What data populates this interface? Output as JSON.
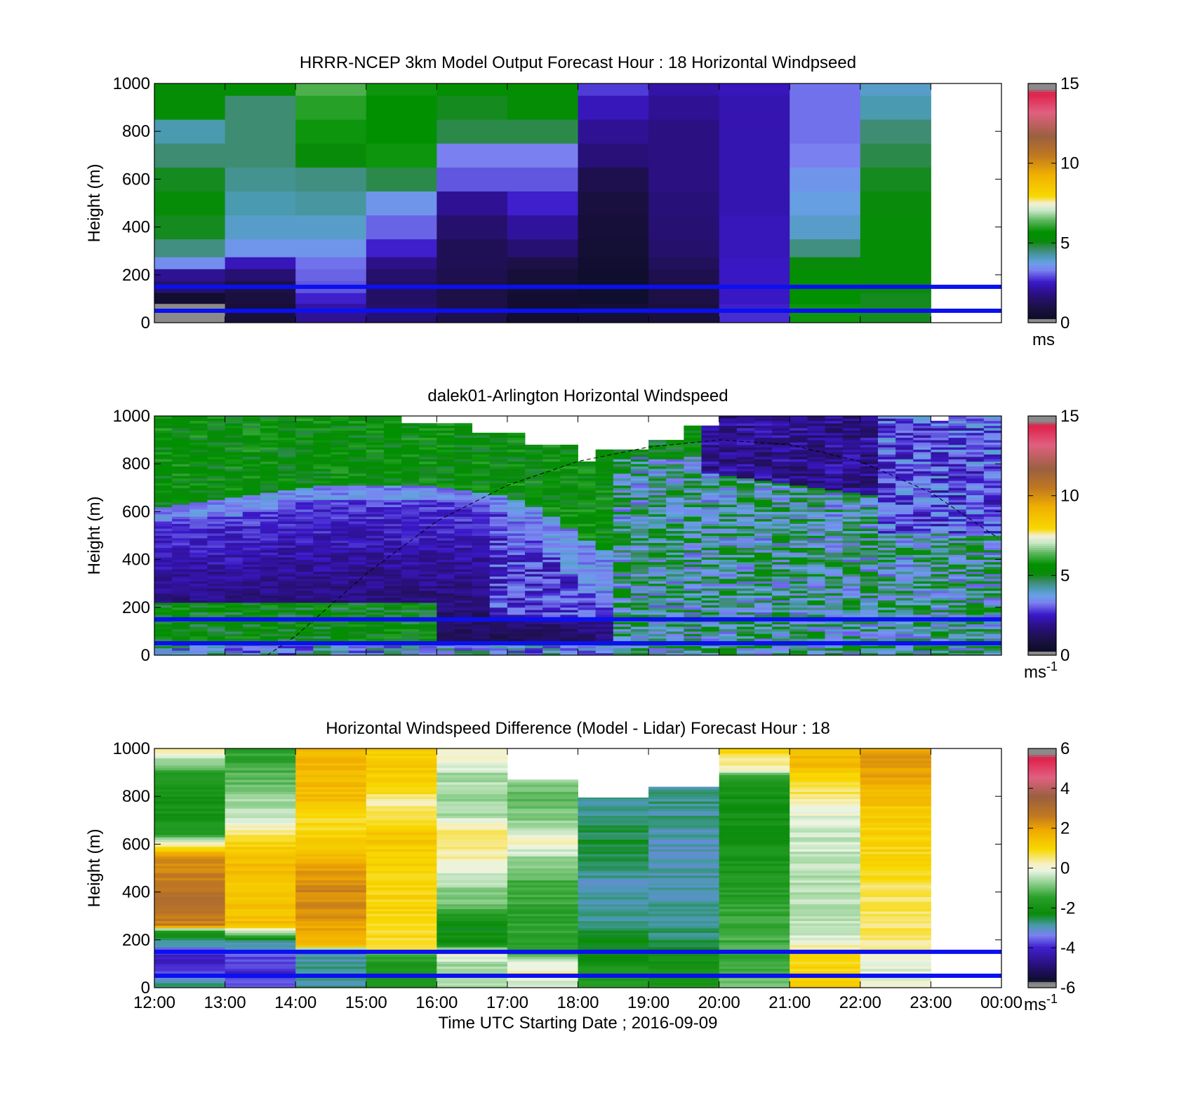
{
  "chart_data": [
    {
      "type": "heatmap",
      "title": "HRRR-NCEP 3km Model Output   Forecast Hour : 18 Horizontal Windpseed",
      "ylabel": "Height (m)",
      "ylim": [
        0,
        1000
      ],
      "y_ticks": [
        "0",
        "200",
        "400",
        "600",
        "800",
        "1000"
      ],
      "x_ticks": [
        "12:00",
        "13:00",
        "14:00",
        "15:00",
        "16:00",
        "17:00",
        "18:00",
        "19:00",
        "20:00",
        "21:00",
        "22:00",
        "23:00",
        "00:00"
      ],
      "colorbar": {
        "min": 0,
        "max": 15,
        "ticks": [
          "0",
          "5",
          "10",
          "15"
        ],
        "unit": "ms",
        "unit_sup": ""
      },
      "reference_lines_m": [
        50,
        150
      ],
      "heights_m": [
        30,
        60,
        100,
        150,
        200,
        250,
        300,
        400,
        500,
        600,
        700,
        800,
        900,
        1000
      ],
      "columns": [
        {
          "time": "12:00",
          "speed_ms": [
            0.2,
            0.1,
            0.5,
            1.5,
            2.0,
            3.5,
            4.5,
            5.0,
            5.3,
            5.0,
            4.6,
            4.2,
            5.4,
            5.4
          ]
        },
        {
          "time": "13:00",
          "speed_ms": [
            0.8,
            0.7,
            0.9,
            1.0,
            1.6,
            2.4,
            3.6,
            4.0,
            4.2,
            4.4,
            4.6,
            4.6,
            4.6,
            5.5
          ]
        },
        {
          "time": "14:00",
          "speed_ms": [
            2.0,
            2.2,
            2.6,
            3.0,
            3.1,
            3.2,
            3.6,
            4.0,
            4.3,
            4.5,
            5.2,
            5.8,
            6.0,
            6.3
          ]
        },
        {
          "time": "15:00",
          "speed_ms": [
            1.6,
            1.5,
            1.4,
            1.4,
            1.5,
            1.9,
            2.6,
            3.1,
            3.6,
            4.8,
            5.8,
            5.7,
            5.7,
            5.8
          ]
        },
        {
          "time": "16:00",
          "speed_ms": [
            1.1,
            1.0,
            1.0,
            1.0,
            1.1,
            1.2,
            1.2,
            1.5,
            2.0,
            3.0,
            3.3,
            4.8,
            5.0,
            5.5
          ]
        },
        {
          "time": "17:00",
          "speed_ms": [
            0.5,
            0.5,
            0.5,
            0.6,
            0.7,
            1.0,
            1.6,
            2.1,
            2.6,
            3.0,
            3.3,
            4.8,
            5.4,
            5.5
          ]
        },
        {
          "time": "18:00",
          "speed_ms": [
            0.6,
            0.6,
            0.4,
            0.4,
            0.4,
            0.5,
            0.6,
            0.7,
            0.9,
            1.1,
            1.7,
            2.0,
            2.4,
            2.8
          ]
        },
        {
          "time": "19:00",
          "speed_ms": [
            0.9,
            0.9,
            1.0,
            1.0,
            1.1,
            1.3,
            1.5,
            1.6,
            1.7,
            1.8,
            1.8,
            1.8,
            2.0,
            2.2
          ]
        },
        {
          "time": "20:00",
          "speed_ms": [
            2.7,
            2.6,
            2.5,
            2.5,
            2.5,
            2.5,
            2.4,
            2.4,
            2.3,
            2.3,
            2.3,
            2.3,
            2.3,
            2.4
          ]
        },
        {
          "time": "21:00",
          "speed_ms": [
            5.8,
            5.8,
            5.7,
            5.6,
            5.5,
            5.1,
            4.5,
            4.0,
            3.8,
            3.6,
            3.3,
            3.2,
            3.2,
            3.2
          ]
        },
        {
          "time": "22:00",
          "speed_ms": [
            5.0,
            5.0,
            5.0,
            5.2,
            5.3,
            5.4,
            5.4,
            5.3,
            5.1,
            5.0,
            4.8,
            4.6,
            4.2,
            4.0
          ]
        }
      ]
    },
    {
      "type": "heatmap",
      "title": "dalek01-Arlington  Horizontal Windspeed",
      "ylabel": "Height (m)",
      "ylim": [
        0,
        1000
      ],
      "y_ticks": [
        "0",
        "200",
        "400",
        "600",
        "800",
        "1000"
      ],
      "x_ticks": [
        "12:00",
        "13:00",
        "14:00",
        "15:00",
        "16:00",
        "17:00",
        "18:00",
        "19:00",
        "20:00",
        "21:00",
        "22:00",
        "23:00",
        "00:00"
      ],
      "colorbar": {
        "min": 0,
        "max": 15,
        "ticks": [
          "0",
          "5",
          "10",
          "15"
        ],
        "unit": "ms",
        "unit_sup": "-1"
      },
      "reference_lines_m": [
        50,
        150
      ],
      "dashed_curve_points": [
        [
          13.6,
          0
        ],
        [
          14,
          80
        ],
        [
          15,
          340
        ],
        [
          16,
          560
        ],
        [
          17,
          710
        ],
        [
          18,
          810
        ],
        [
          19,
          870
        ],
        [
          20,
          900
        ],
        [
          21,
          880
        ],
        [
          22,
          810
        ],
        [
          23,
          680
        ],
        [
          23.95,
          490
        ]
      ],
      "lidar_features": {
        "low_wind_core_top_m": [
          [
            12,
            560
          ],
          [
            13,
            580
          ],
          [
            14,
            640
          ],
          [
            15,
            650
          ],
          [
            16,
            640
          ],
          [
            16.5,
            630
          ],
          [
            17,
            560
          ],
          [
            17.5,
            420
          ],
          [
            18,
            260
          ],
          [
            18.5,
            170
          ]
        ],
        "upper_green_layer_bottom_m": [
          [
            12,
            620
          ],
          [
            13,
            660
          ],
          [
            14,
            700
          ],
          [
            15,
            710
          ],
          [
            16,
            700
          ],
          [
            17,
            650
          ],
          [
            17.5,
            580
          ],
          [
            18,
            480
          ],
          [
            18.5,
            400
          ]
        ],
        "upper_data_gaps": [
          {
            "t0": 15.5,
            "t1": 16.6,
            "z0": 970,
            "z1": 1000
          },
          {
            "t0": 16.6,
            "t1": 17.3,
            "z0": 930,
            "z1": 1000
          },
          {
            "t0": 17.3,
            "t1": 18.0,
            "z0": 880,
            "z1": 1000
          },
          {
            "t0": 18.0,
            "t1": 18.35,
            "z0": 815,
            "z1": 1000
          },
          {
            "t0": 18.35,
            "t1": 19.0,
            "z0": 860,
            "z1": 1000
          },
          {
            "t0": 19.0,
            "t1": 19.6,
            "z0": 900,
            "z1": 1000
          },
          {
            "t0": 19.6,
            "t1": 20.0,
            "z0": 960,
            "z1": 1000
          },
          {
            "t0": 22.9,
            "t1": 23.2,
            "z0": 980,
            "z1": 1000
          },
          {
            "t0": 23.2,
            "t1": 23.35,
            "z0": 880,
            "z1": 940
          }
        ],
        "data_end_time": 23.95
      }
    },
    {
      "type": "heatmap",
      "title": "Horizontal Windspeed Difference (Model - Lidar) Forecast Hour : 18",
      "ylabel": "Height (m)",
      "xlabel": "Time UTC  Starting Date ; 2016-09-09",
      "ylim": [
        0,
        1000
      ],
      "y_ticks": [
        "0",
        "200",
        "400",
        "600",
        "800",
        "1000"
      ],
      "x_ticks": [
        "12:00",
        "13:00",
        "14:00",
        "15:00",
        "16:00",
        "17:00",
        "18:00",
        "19:00",
        "20:00",
        "21:00",
        "22:00",
        "23:00",
        "00:00"
      ],
      "colorbar": {
        "min": -6,
        "max": 6,
        "ticks": [
          "-6",
          "-4",
          "-2",
          "0",
          "2",
          "4",
          "6"
        ],
        "unit": "ms",
        "unit_sup": "-1"
      },
      "reference_lines_m": [
        50,
        150
      ],
      "columns": [
        {
          "time": "12:00",
          "top_m": 1000,
          "profile": [
            [
              0,
              -2.5
            ],
            [
              60,
              -3.5
            ],
            [
              120,
              -4.2
            ],
            [
              180,
              -3.0
            ],
            [
              240,
              -1.5
            ],
            [
              260,
              2.5
            ],
            [
              350,
              3.0
            ],
            [
              450,
              2.6
            ],
            [
              550,
              2.2
            ],
            [
              600,
              0.4
            ],
            [
              650,
              -1.8
            ],
            [
              800,
              -2.0
            ],
            [
              900,
              -1.5
            ],
            [
              960,
              -0.5
            ],
            [
              1000,
              0.5
            ]
          ]
        },
        {
          "time": "13:00",
          "top_m": 1000,
          "profile": [
            [
              0,
              -3.5
            ],
            [
              60,
              -4.0
            ],
            [
              150,
              -3.5
            ],
            [
              200,
              -2.5
            ],
            [
              240,
              -0.2
            ],
            [
              260,
              1.5
            ],
            [
              400,
              1.4
            ],
            [
              550,
              1.5
            ],
            [
              650,
              0.5
            ],
            [
              720,
              -0.5
            ],
            [
              800,
              -0.5
            ],
            [
              850,
              -1.0
            ],
            [
              950,
              -1.5
            ],
            [
              1000,
              -1.5
            ]
          ]
        },
        {
          "time": "14:00",
          "top_m": 1000,
          "profile": [
            [
              0,
              -2.8
            ],
            [
              100,
              -2.8
            ],
            [
              160,
              -3.0
            ],
            [
              170,
              1.5
            ],
            [
              300,
              2.2
            ],
            [
              400,
              2.4
            ],
            [
              500,
              2.0
            ],
            [
              600,
              1.2
            ],
            [
              700,
              0.8
            ],
            [
              800,
              1.5
            ],
            [
              900,
              1.6
            ],
            [
              1000,
              1.6
            ]
          ]
        },
        {
          "time": "15:00",
          "top_m": 1000,
          "profile": [
            [
              0,
              -1.8
            ],
            [
              60,
              -1.8
            ],
            [
              140,
              -1.5
            ],
            [
              160,
              0.8
            ],
            [
              300,
              1.0
            ],
            [
              500,
              1.0
            ],
            [
              650,
              1.4
            ],
            [
              720,
              0.6
            ],
            [
              780,
              0.3
            ],
            [
              850,
              1.2
            ],
            [
              1000,
              1.2
            ]
          ]
        },
        {
          "time": "16:00",
          "top_m": 1000,
          "profile": [
            [
              0,
              -0.5
            ],
            [
              50,
              -0.3
            ],
            [
              100,
              -0.6
            ],
            [
              150,
              0.3
            ],
            [
              180,
              -2.0
            ],
            [
              260,
              -2.2
            ],
            [
              350,
              -1.0
            ],
            [
              450,
              -0.5
            ],
            [
              550,
              0.3
            ],
            [
              650,
              0.6
            ],
            [
              720,
              -0.5
            ],
            [
              800,
              -0.6
            ],
            [
              900,
              -0.5
            ],
            [
              950,
              0.1
            ],
            [
              1000,
              0.0
            ]
          ]
        },
        {
          "time": "17:00",
          "top_m": 870,
          "profile": [
            [
              0,
              -0.5
            ],
            [
              60,
              0.4
            ],
            [
              120,
              -0.5
            ],
            [
              150,
              -1.3
            ],
            [
              300,
              -1.5
            ],
            [
              450,
              -1.2
            ],
            [
              550,
              -0.6
            ],
            [
              600,
              0.2
            ],
            [
              700,
              -0.8
            ],
            [
              800,
              -1.2
            ],
            [
              870,
              -0.7
            ]
          ]
        },
        {
          "time": "18:00",
          "top_m": 795,
          "profile": [
            [
              0,
              -1.5
            ],
            [
              60,
              -1.8
            ],
            [
              150,
              -2.2
            ],
            [
              250,
              -2.6
            ],
            [
              400,
              -3.0
            ],
            [
              500,
              -2.7
            ],
            [
              600,
              -2.4
            ],
            [
              700,
              -2.7
            ],
            [
              795,
              -2.9
            ]
          ]
        },
        {
          "time": "19:00",
          "top_m": 840,
          "profile": [
            [
              0,
              -1.8
            ],
            [
              100,
              -2.0
            ],
            [
              200,
              -2.6
            ],
            [
              300,
              -2.8
            ],
            [
              450,
              -2.9
            ],
            [
              600,
              -3.0
            ],
            [
              700,
              -2.8
            ],
            [
              840,
              -2.7
            ]
          ]
        },
        {
          "time": "20:00",
          "top_m": 1000,
          "profile": [
            [
              0,
              -1.0
            ],
            [
              150,
              -1.3
            ],
            [
              250,
              -1.2
            ],
            [
              350,
              -1.5
            ],
            [
              500,
              -1.8
            ],
            [
              650,
              -2.0
            ],
            [
              800,
              -2.0
            ],
            [
              880,
              -1.5
            ],
            [
              920,
              0.3
            ],
            [
              950,
              0.5
            ],
            [
              1000,
              1.0
            ]
          ]
        },
        {
          "time": "21:00",
          "top_m": 1000,
          "profile": [
            [
              0,
              1.5
            ],
            [
              60,
              1.0
            ],
            [
              150,
              0.8
            ],
            [
              200,
              -0.3
            ],
            [
              350,
              -0.5
            ],
            [
              500,
              -0.4
            ],
            [
              650,
              -0.3
            ],
            [
              750,
              0.0
            ],
            [
              800,
              0.5
            ],
            [
              880,
              1.0
            ],
            [
              930,
              1.5
            ],
            [
              1000,
              1.6
            ]
          ]
        },
        {
          "time": "22:00",
          "top_m": 1000,
          "profile": [
            [
              0,
              0.2
            ],
            [
              60,
              -0.3
            ],
            [
              150,
              0.2
            ],
            [
              250,
              0.6
            ],
            [
              400,
              0.6
            ],
            [
              550,
              1.0
            ],
            [
              650,
              1.1
            ],
            [
              750,
              1.3
            ],
            [
              850,
              1.8
            ],
            [
              950,
              2.2
            ],
            [
              1000,
              2.0
            ]
          ]
        }
      ]
    }
  ]
}
